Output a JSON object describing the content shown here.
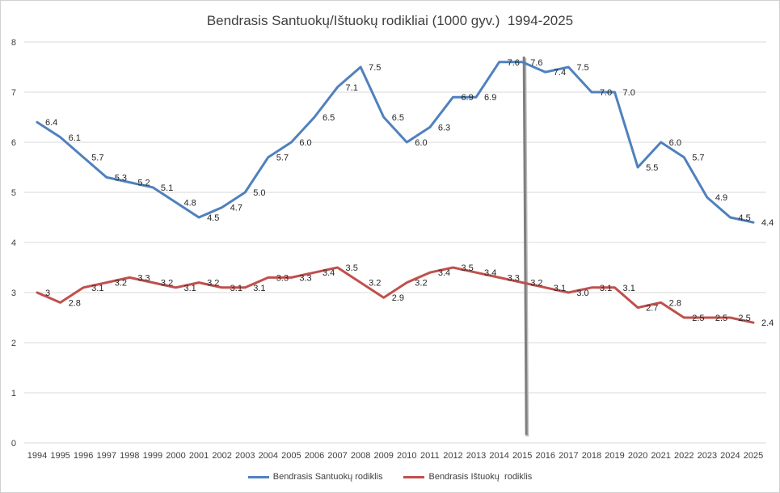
{
  "chart_data": {
    "type": "line",
    "title": "Bendrasis Santuokų/Ištuokų rodikliai (1000 gyv.)  1994-2025",
    "xlabel": "",
    "ylabel": "",
    "ylim": [
      0,
      8
    ],
    "yticks": [
      "0",
      "1",
      "2",
      "3",
      "4",
      "5",
      "6",
      "7",
      "8"
    ],
    "categories": [
      "1994",
      "1995",
      "1996",
      "1997",
      "1998",
      "1999",
      "2000",
      "2001",
      "2002",
      "2003",
      "2004",
      "2005",
      "2006",
      "2007",
      "2008",
      "2009",
      "2010",
      "2011",
      "2012",
      "2013",
      "2014",
      "2015",
      "2016",
      "2017",
      "2018",
      "2019",
      "2020",
      "2021",
      "2022",
      "2023",
      "2024",
      "2025"
    ],
    "grid": true,
    "legend_position": "bottom",
    "marker_year": "2015",
    "series": [
      {
        "name": "Bendrasis Santuokų rodiklis",
        "color": "#4f81bd",
        "values": [
          6.4,
          6.1,
          5.7,
          5.3,
          5.2,
          5.1,
          4.8,
          4.5,
          4.7,
          5.0,
          5.7,
          6.0,
          6.5,
          7.1,
          7.5,
          6.5,
          6.0,
          6.3,
          6.9,
          6.9,
          7.6,
          7.6,
          7.4,
          7.5,
          7.0,
          7.0,
          5.5,
          6.0,
          5.7,
          4.9,
          4.5,
          4.4
        ],
        "labels": [
          "6.4",
          "6.1",
          "5.7",
          "5.3",
          "5.2",
          "5.1",
          "4.8",
          "4.5",
          "4.7",
          "5.0",
          "5.7",
          "6.0",
          "6.5",
          "7.1",
          "7.5",
          "6.5",
          "6.0",
          "6.3",
          "6.9",
          "6.9",
          "7.6",
          "7.6",
          "7.4",
          "7.5",
          "7.0",
          "7.0",
          "5.5",
          "6.0",
          "5.7",
          "4.9",
          "4.5",
          "4.4"
        ]
      },
      {
        "name": "Bendrasis Ištuokų  rodiklis",
        "color": "#c0504d",
        "values": [
          3.0,
          2.8,
          3.1,
          3.2,
          3.3,
          3.2,
          3.1,
          3.2,
          3.1,
          3.1,
          3.3,
          3.3,
          3.4,
          3.5,
          3.2,
          2.9,
          3.2,
          3.4,
          3.5,
          3.4,
          3.3,
          3.2,
          3.1,
          3.0,
          3.1,
          3.1,
          2.7,
          2.8,
          2.5,
          2.5,
          2.5,
          2.4
        ],
        "labels": [
          "3",
          "2.8",
          "3.1",
          "3.2",
          "3.3",
          "3.2",
          "3.1",
          "3.2",
          "3.1",
          "3.1",
          "3.3",
          "3.3",
          "3.4",
          "3.5",
          "3.2",
          "2.9",
          "3.2",
          "3.4",
          "3.5",
          "3.4",
          "3.3",
          "3.2",
          "3.1",
          "3.0",
          "3.1",
          "3.1",
          "2.7",
          "2.8",
          "2.5",
          "2.5",
          "2.5",
          "2.4"
        ]
      }
    ]
  }
}
